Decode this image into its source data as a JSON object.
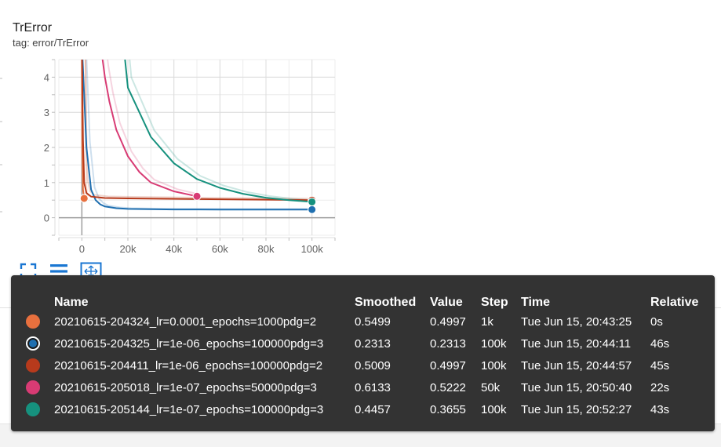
{
  "panel": {
    "title": "TrError",
    "tag": "tag: error/TrError"
  },
  "toolbar": {
    "icons": [
      "fullscreen-icon",
      "toggle-log-icon",
      "fit-domain-icon"
    ]
  },
  "table": {
    "headers": {
      "name": "Name",
      "smoothed": "Smoothed",
      "value": "Value",
      "step": "Step",
      "time": "Time",
      "relative": "Relative"
    },
    "rows": [
      {
        "color": "#e8703e",
        "name": "20210615-204324_lr=0.0001_epochs=1000pdg=2",
        "smoothed": "0.5499",
        "value": "0.4997",
        "step": "1k",
        "time": "Tue Jun 15, 20:43:25",
        "relative": "0s",
        "selected": false
      },
      {
        "color": "#1f6fb0",
        "name": "20210615-204325_lr=1e-06_epochs=100000pdg=3",
        "smoothed": "0.2313",
        "value": "0.2313",
        "step": "100k",
        "time": "Tue Jun 15, 20:44:11",
        "relative": "46s",
        "selected": true
      },
      {
        "color": "#b73a1c",
        "name": "20210615-204411_lr=1e-06_epochs=100000pdg=2",
        "smoothed": "0.5009",
        "value": "0.4997",
        "step": "100k",
        "time": "Tue Jun 15, 20:44:57",
        "relative": "45s",
        "selected": false
      },
      {
        "color": "#d83b74",
        "name": "20210615-205018_lr=1e-07_epochs=50000pdg=3",
        "smoothed": "0.6133",
        "value": "0.5222",
        "step": "50k",
        "time": "Tue Jun 15, 20:50:40",
        "relative": "22s",
        "selected": false
      },
      {
        "color": "#16917e",
        "name": "20210615-205144_lr=1e-07_epochs=100000pdg=3",
        "smoothed": "0.4457",
        "value": "0.3655",
        "step": "100k",
        "time": "Tue Jun 15, 20:52:27",
        "relative": "43s",
        "selected": false
      }
    ]
  },
  "chart_data": {
    "type": "line",
    "title": "TrError",
    "xlabel": "",
    "ylabel": "",
    "xlim": [
      -10000,
      110000
    ],
    "ylim": [
      -0.5,
      4.5
    ],
    "x_ticks": [
      0,
      20000,
      40000,
      60000,
      80000,
      100000
    ],
    "x_tick_labels": [
      "0",
      "20k",
      "40k",
      "60k",
      "80k",
      "100k"
    ],
    "y_ticks": [
      0,
      1,
      2,
      3,
      4
    ],
    "y_tick_labels": [
      "0",
      "1",
      "2",
      "3",
      "4"
    ],
    "grid": true,
    "series": [
      {
        "color": "#e8703e",
        "x": [
          0,
          200,
          500,
          1000
        ],
        "y": [
          5.0,
          2.0,
          0.8,
          0.55
        ],
        "marker": [
          1000,
          0.55
        ]
      },
      {
        "color": "#1f6fb0",
        "x": [
          0,
          2000,
          4000,
          6000,
          8000,
          10000,
          15000,
          20000,
          30000,
          40000,
          60000,
          80000,
          100000
        ],
        "y": [
          5.0,
          2.0,
          0.8,
          0.5,
          0.38,
          0.32,
          0.27,
          0.25,
          0.24,
          0.235,
          0.232,
          0.231,
          0.231
        ],
        "marker": [
          100000,
          0.231
        ]
      },
      {
        "color": "#b73a1c",
        "x": [
          0,
          500,
          1000,
          2000,
          4000,
          10000,
          20000,
          50000,
          100000
        ],
        "y": [
          5.0,
          2.2,
          1.0,
          0.7,
          0.6,
          0.56,
          0.55,
          0.53,
          0.5
        ],
        "marker": [
          100000,
          0.5
        ]
      },
      {
        "color": "#d83b74",
        "x": [
          8000,
          10000,
          12000,
          15000,
          20000,
          25000,
          30000,
          40000,
          50000
        ],
        "y": [
          5.0,
          4.0,
          3.3,
          2.5,
          1.75,
          1.3,
          1.0,
          0.75,
          0.61
        ],
        "marker": [
          50000,
          0.61
        ]
      },
      {
        "color": "#16917e",
        "x": [
          18000,
          20000,
          30000,
          40000,
          50000,
          60000,
          70000,
          80000,
          90000,
          100000
        ],
        "y": [
          5.0,
          3.7,
          2.3,
          1.55,
          1.1,
          0.85,
          0.68,
          0.57,
          0.5,
          0.45
        ],
        "marker": [
          100000,
          0.45
        ]
      }
    ]
  }
}
